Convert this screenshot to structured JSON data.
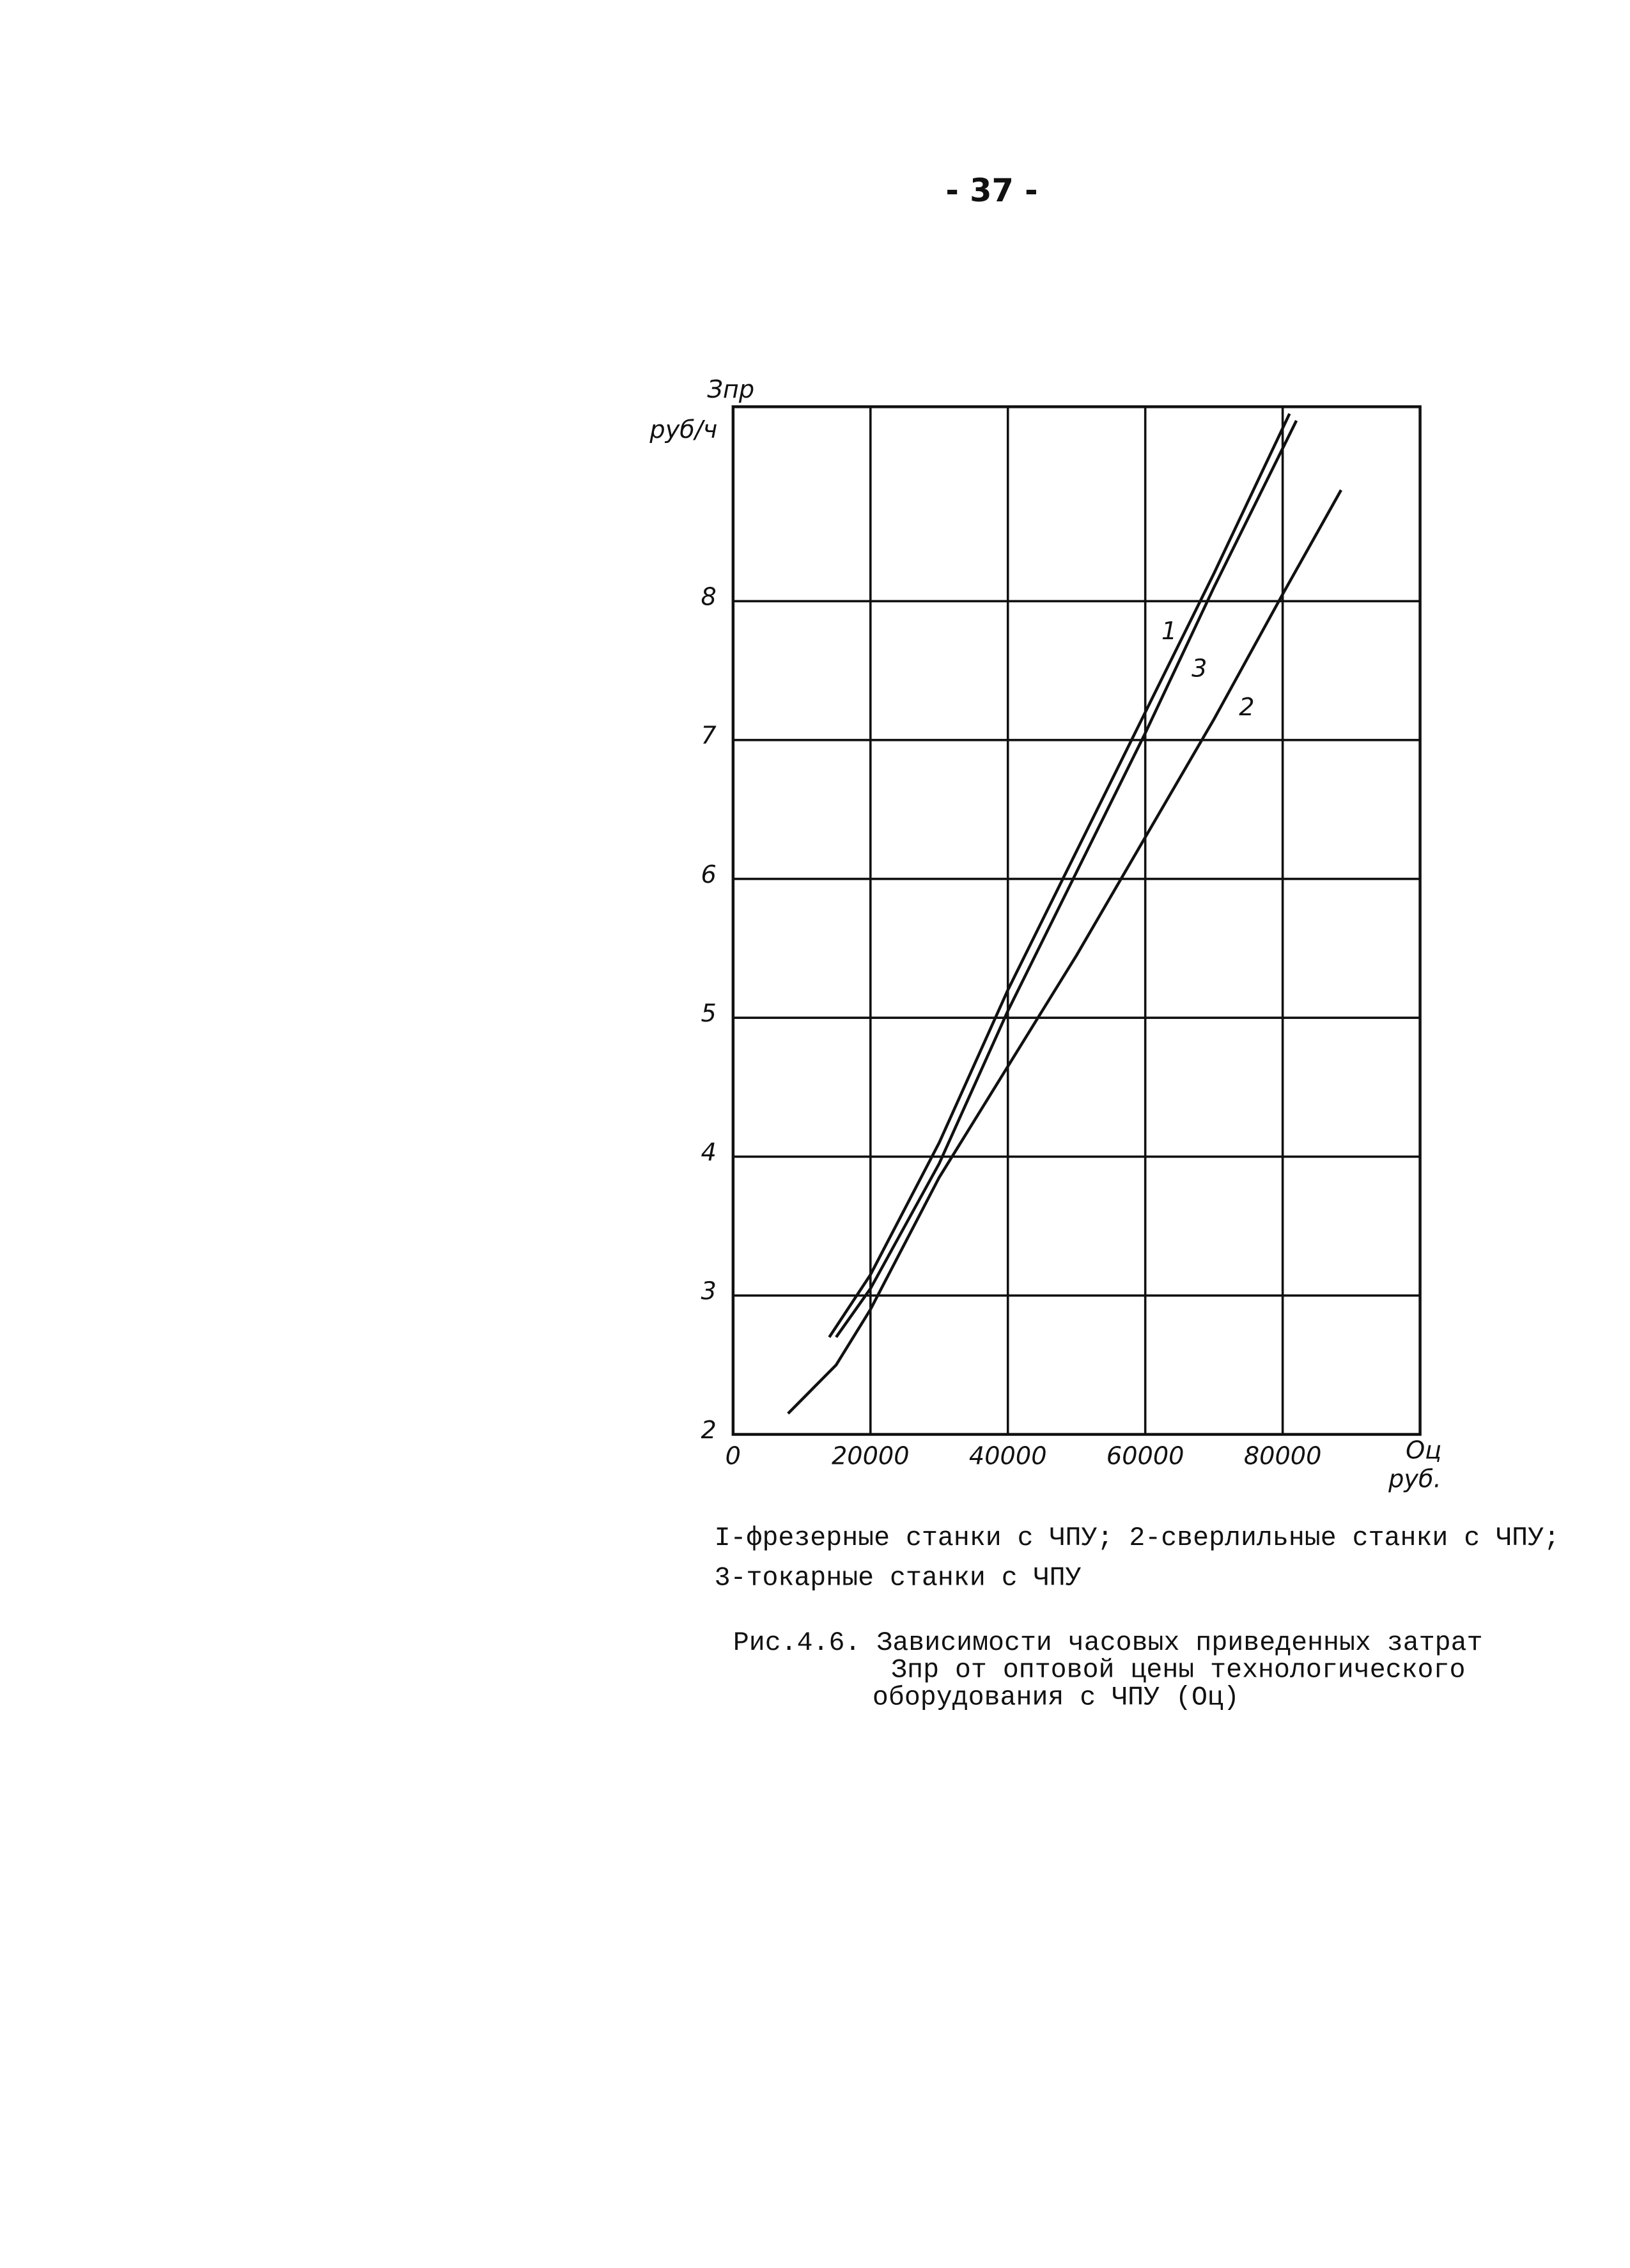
{
  "page_number": "- 37 -",
  "chart_data": {
    "type": "line",
    "y_label": "Зпр",
    "y_unit": "руб/ч",
    "x_label": "Оц",
    "x_unit": "руб.",
    "xlim": [
      0,
      100000
    ],
    "ylim": [
      2,
      9.4
    ],
    "xticks": [
      0,
      20000,
      40000,
      60000,
      80000
    ],
    "yticks": [
      2,
      3,
      4,
      5,
      6,
      7,
      8
    ],
    "grid": true,
    "series": [
      {
        "name": "1",
        "color": "#111111",
        "x": [
          14000,
          20000,
          30000,
          40000,
          50000,
          60000,
          70000,
          81000
        ],
        "values": [
          2.7,
          3.15,
          4.1,
          5.2,
          6.2,
          7.2,
          8.2,
          9.35
        ]
      },
      {
        "name": "2",
        "color": "#111111",
        "x": [
          8000,
          15000,
          20000,
          30000,
          40000,
          50000,
          60000,
          70000,
          80000,
          88500
        ],
        "values": [
          2.15,
          2.5,
          2.9,
          3.85,
          4.65,
          5.45,
          6.3,
          7.15,
          8.05,
          8.8
        ]
      },
      {
        "name": "3",
        "color": "#111111",
        "x": [
          15000,
          20000,
          30000,
          40000,
          50000,
          60000,
          70000,
          82000
        ],
        "values": [
          2.7,
          3.05,
          3.95,
          5.05,
          6.05,
          7.05,
          8.1,
          9.3
        ]
      }
    ]
  },
  "legend_lines": [
    "I-фрезерные станки с ЧПУ; 2-сверлильные станки с ЧПУ;",
    "3-токарные станки с ЧПУ"
  ],
  "caption": [
    "Рис.4.6. Зависимости часовых приведенных затрат",
    "Зпр от оптовой цены технологического",
    "оборудования с ЧПУ (Оц)"
  ]
}
